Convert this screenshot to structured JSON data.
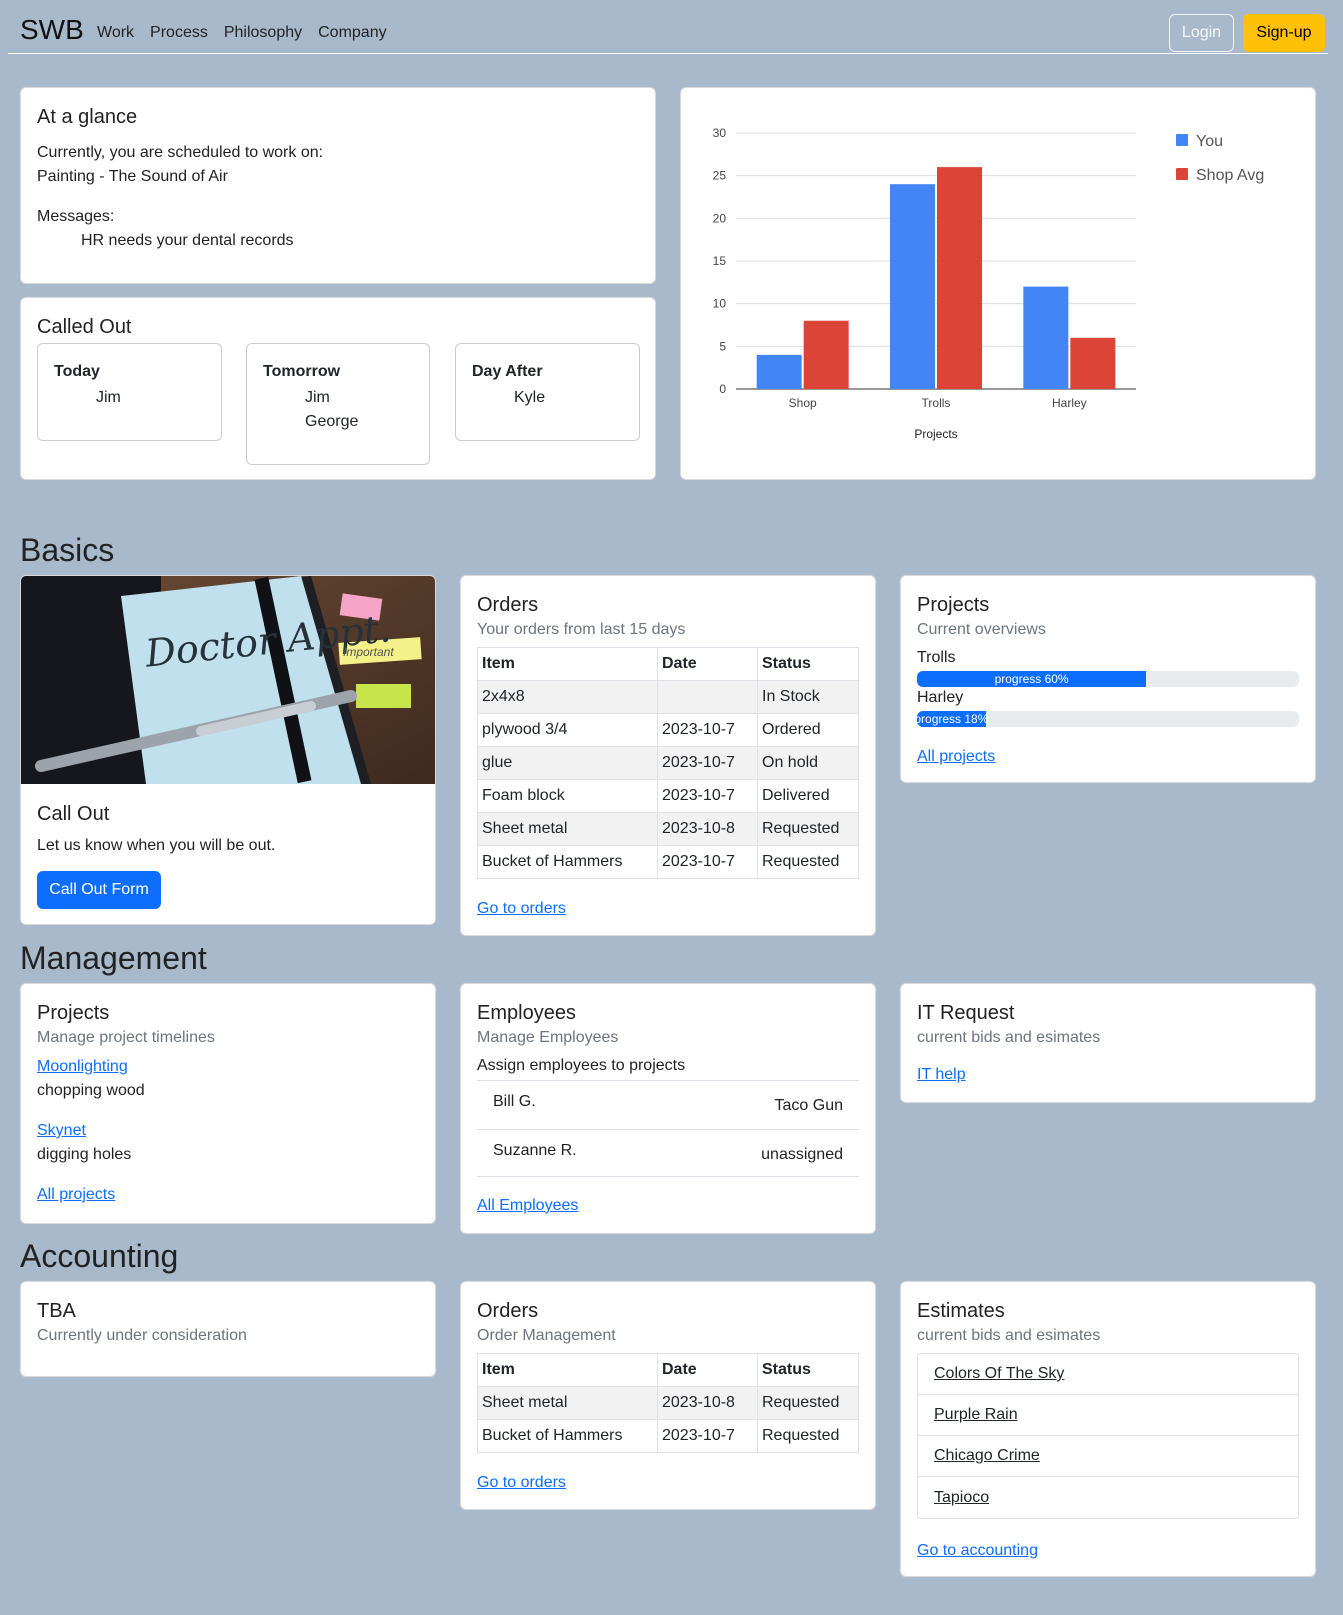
{
  "nav": {
    "brand": "SWB",
    "links": [
      "Work",
      "Process",
      "Philosophy",
      "Company"
    ],
    "login_label": "Login",
    "signup_label": "Sign-up"
  },
  "glance": {
    "title": "At a glance",
    "scheduled_label": "Currently, you are scheduled to work on:",
    "scheduled_project": "Painting - The Sound of Air",
    "messages_label": "Messages:",
    "message": "HR needs your dental records"
  },
  "called_out": {
    "title": "Called Out",
    "days": [
      {
        "day": "Today",
        "names": [
          "Jim"
        ]
      },
      {
        "day": "Tomorrow",
        "names": [
          "Jim",
          "George"
        ]
      },
      {
        "day": "Day After",
        "names": [
          "Kyle"
        ]
      }
    ]
  },
  "chart_data": {
    "type": "bar",
    "categories": [
      "Shop",
      "Trolls",
      "Harley"
    ],
    "series": [
      {
        "name": "You",
        "values": [
          4,
          24,
          12
        ],
        "color": "#4285f4"
      },
      {
        "name": "Shop Avg",
        "values": [
          8,
          26,
          6
        ],
        "color": "#db4437"
      }
    ],
    "xlabel": "Projects",
    "ylabel": "",
    "ylim": [
      0,
      30
    ],
    "yticks": [
      0,
      5,
      10,
      15,
      20,
      25,
      30
    ],
    "grid": true,
    "legend": "right"
  },
  "sections": {
    "basics": "Basics",
    "management": "Management",
    "accounting": "Accounting"
  },
  "callout_card": {
    "image_text": "Doctor Appt.",
    "image_note": "Important",
    "title": "Call Out",
    "text": "Let us know when you will be out.",
    "button": "Call Out Form"
  },
  "orders": {
    "title": "Orders",
    "subtitle": "Your orders from last 15 days",
    "headers": [
      "Item",
      "Date",
      "Status"
    ],
    "rows": [
      [
        "2x4x8",
        "",
        "In Stock"
      ],
      [
        "plywood 3/4",
        "2023-10-7",
        "Ordered"
      ],
      [
        "glue",
        "2023-10-7",
        "On hold"
      ],
      [
        "Foam block",
        "2023-10-7",
        "Delivered"
      ],
      [
        "Sheet metal",
        "2023-10-8",
        "Requested"
      ],
      [
        "Bucket of Hammers",
        "2023-10-7",
        "Requested"
      ]
    ],
    "link": "Go to orders"
  },
  "projects_overview": {
    "title": "Projects",
    "subtitle": "Current overviews",
    "items": [
      {
        "name": "Trolls",
        "label": "progress 60%",
        "progress": 0.6
      },
      {
        "name": "Harley",
        "label": "progress 18%",
        "progress": 0.18
      }
    ],
    "link": "All projects"
  },
  "mgmt_projects": {
    "title": "Projects",
    "subtitle": "Manage project timelines",
    "items": [
      {
        "name": "Moonlighting",
        "desc": "chopping wood"
      },
      {
        "name": "Skynet",
        "desc": "digging holes"
      }
    ],
    "link": "All projects"
  },
  "employees": {
    "title": "Employees",
    "subtitle": "Manage Employees",
    "assign_label": "Assign employees to projects",
    "rows": [
      {
        "name": "Bill G.",
        "project": "Taco Gun"
      },
      {
        "name": "Suzanne R.",
        "project": "unassigned"
      }
    ],
    "link": "All Employees"
  },
  "it_request": {
    "title": "IT Request",
    "subtitle": "current bids and esimates",
    "link": "IT help"
  },
  "tba": {
    "title": "TBA",
    "subtitle": "Currently under consideration"
  },
  "acct_orders": {
    "title": "Orders",
    "subtitle": "Order Management",
    "headers": [
      "Item",
      "Date",
      "Status"
    ],
    "rows": [
      [
        "Sheet metal",
        "2023-10-8",
        "Requested"
      ],
      [
        "Bucket of Hammers",
        "2023-10-7",
        "Requested"
      ]
    ],
    "link": "Go to orders"
  },
  "estimates": {
    "title": "Estimates",
    "subtitle": "current bids and esimates",
    "items": [
      "Colors Of The Sky",
      "Purple Rain",
      "Chicago Crime",
      "Tapioco"
    ],
    "link": "Go to accounting"
  }
}
